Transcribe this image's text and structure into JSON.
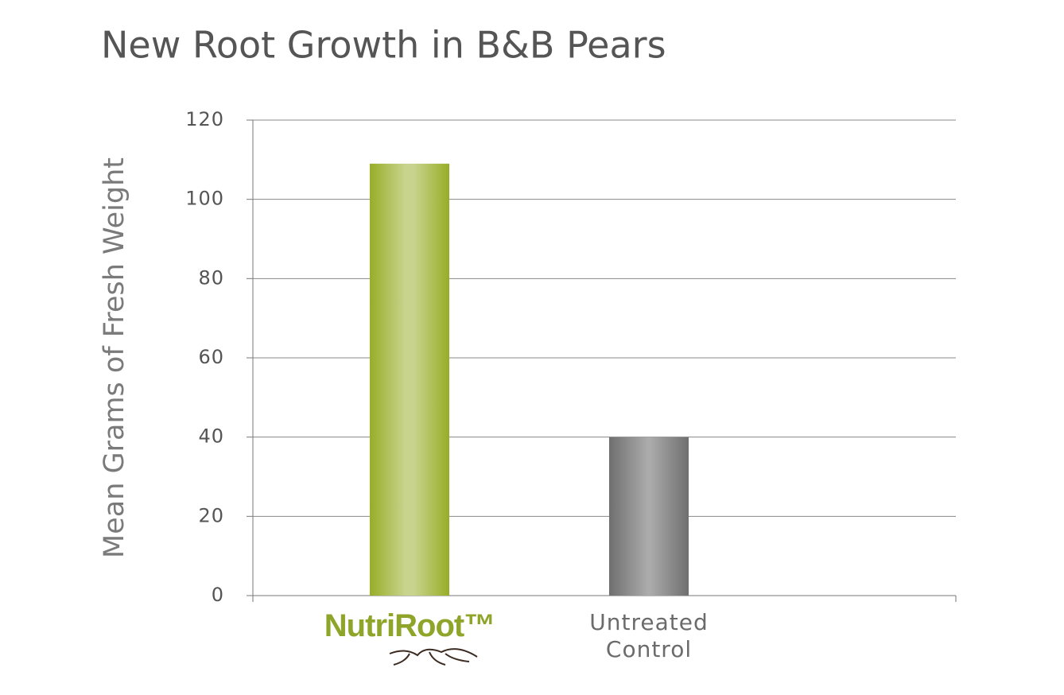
{
  "chart_data": {
    "type": "bar",
    "title": "New Root Growth in B&B Pears",
    "y_label": "Mean Grams of Fresh Weight",
    "categories": [
      "NutriRoot™",
      "Untreated Control"
    ],
    "values": [
      109,
      40
    ],
    "colors": [
      "#9aac2a",
      "#767676"
    ],
    "ylim": [
      0,
      120
    ],
    "yticks": [
      0,
      20,
      40,
      60,
      80,
      100,
      120
    ],
    "grid": true
  }
}
